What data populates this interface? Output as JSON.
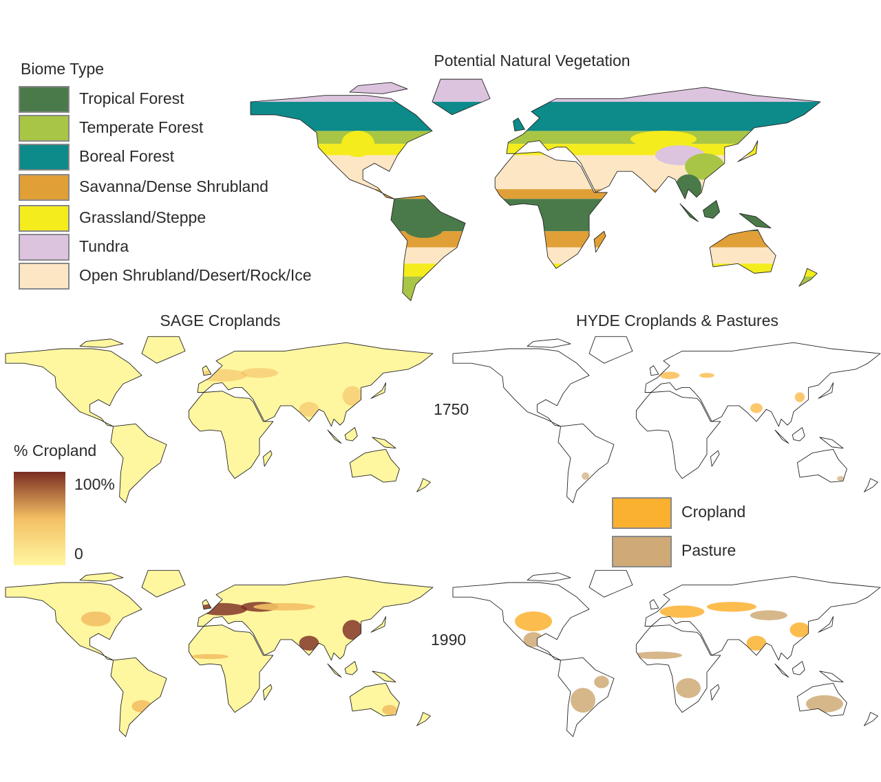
{
  "top_map": {
    "title": "Potential Natural Vegetation",
    "legend_title": "Biome Type",
    "legend": [
      {
        "label": "Tropical Forest",
        "color": "#4a7a4a"
      },
      {
        "label": "Temperate Forest",
        "color": "#a8c545"
      },
      {
        "label": "Boreal Forest",
        "color": "#0d8a8a"
      },
      {
        "label": "Savanna/Dense Shrubland",
        "color": "#e0a037"
      },
      {
        "label": "Grassland/Steppe",
        "color": "#f4ec1c"
      },
      {
        "label": "Tundra",
        "color": "#dcc3de"
      },
      {
        "label": "Open Shrubland/Desert/Rock/Ice",
        "color": "#fde6c4"
      }
    ]
  },
  "sage": {
    "title": "SAGE Croplands",
    "colorbar": {
      "title": "% Cropland",
      "max_label": "100%",
      "min_label": "0",
      "colors": [
        "#fff6a0",
        "#f3c064",
        "#7a2c22"
      ]
    }
  },
  "hyde": {
    "title": "HYDE Croplands & Pastures",
    "legend": [
      {
        "label": "Cropland",
        "color": "#fbb130"
      },
      {
        "label": "Pasture",
        "color": "#cfaa76"
      }
    ]
  },
  "years": [
    "1750",
    "1990"
  ]
}
